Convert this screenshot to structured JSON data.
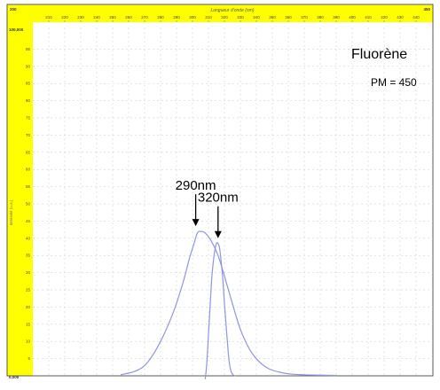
{
  "chart_data": {
    "type": "line",
    "title": "Fluorène",
    "subtitle": "PM = 450",
    "xlabel": "Longueur d'onde (nm)",
    "ylabel": "Intensité (u.a.)",
    "xlim": [
      200,
      450
    ],
    "ylim": [
      0,
      100
    ],
    "x_corner_labels": {
      "left": "200",
      "right": "450"
    },
    "y_corner_labels": {
      "top": "100,000",
      "bottom": "0,000"
    },
    "x_ticks": [
      210,
      220,
      230,
      240,
      250,
      260,
      270,
      280,
      290,
      300,
      310,
      320,
      330,
      340,
      350,
      360,
      370,
      380,
      390,
      400,
      410,
      420,
      430,
      440
    ],
    "y_ticks": [
      5,
      10,
      15,
      20,
      25,
      30,
      35,
      40,
      45,
      50,
      55,
      60,
      65,
      70,
      75,
      80,
      85,
      90,
      95
    ],
    "grid": true,
    "series": [
      {
        "role": "excitation",
        "color": "#8e95e0",
        "x": [
          255,
          265,
          272,
          280,
          288,
          294,
          298,
          301,
          303,
          305,
          308,
          312,
          316,
          320,
          325,
          330,
          336,
          342,
          348,
          355,
          362,
          370,
          380,
          390
        ],
        "y": [
          0.3,
          1.5,
          4,
          10,
          18.5,
          27,
          34,
          38.5,
          41.5,
          42,
          41.5,
          39,
          35,
          29,
          21,
          13.5,
          7.5,
          4,
          2,
          1,
          0.5,
          0.3,
          0.2,
          0.1
        ]
      },
      {
        "role": "emission",
        "color": "#8e95e0",
        "x": [
          308,
          309,
          310,
          311,
          312,
          313,
          314,
          315,
          316,
          317,
          318,
          319,
          320,
          321,
          322,
          323,
          324,
          325,
          326,
          327
        ],
        "y": [
          -1,
          4,
          12,
          20,
          28,
          33,
          36.5,
          38.5,
          38.5,
          37,
          33,
          28,
          21,
          15,
          9,
          4,
          1.5,
          0.5,
          0.1,
          0
        ]
      }
    ],
    "annotations": [
      {
        "text": "290nm",
        "x": 302,
        "y": 43
      },
      {
        "text": "320nm",
        "x": 316,
        "y": 39.5
      }
    ]
  }
}
